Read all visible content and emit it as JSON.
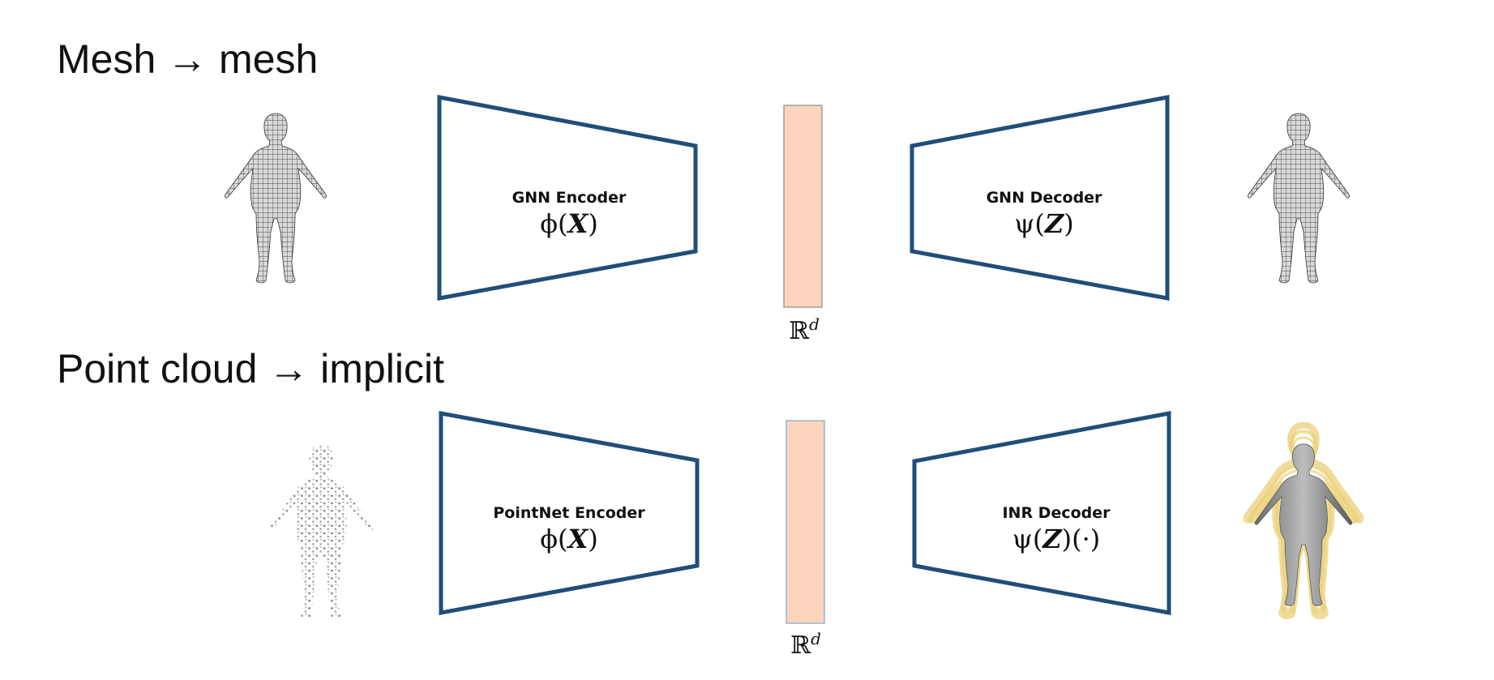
{
  "rows": [
    {
      "title": "Mesh → mesh",
      "encoder": {
        "name": "GNN Encoder",
        "formula_fn": "ϕ",
        "formula_arg": "X",
        "formula_suffix": ""
      },
      "latent": {
        "space": "ℝ",
        "dim": "d"
      },
      "decoder": {
        "name": "GNN Decoder",
        "formula_fn": "ψ",
        "formula_arg": "Z",
        "formula_suffix": ""
      }
    },
    {
      "title": "Point cloud → implicit",
      "encoder": {
        "name": "PointNet Encoder",
        "formula_fn": "ϕ",
        "formula_arg": "X",
        "formula_suffix": ""
      },
      "latent": {
        "space": "ℝ",
        "dim": "d"
      },
      "decoder": {
        "name": "INR Decoder",
        "formula_fn": "ψ",
        "formula_arg": "Z",
        "formula_suffix": "(·)"
      }
    }
  ],
  "colors": {
    "block_stroke": "#1f4e79",
    "latent_fill": "#fdd5bd",
    "latent_stroke_row1": "#8a8a8a",
    "latent_stroke_row2": "#7fa7c8",
    "mesh": "#555555",
    "points": "#8a8a8a",
    "contour": "#e5c04a"
  }
}
